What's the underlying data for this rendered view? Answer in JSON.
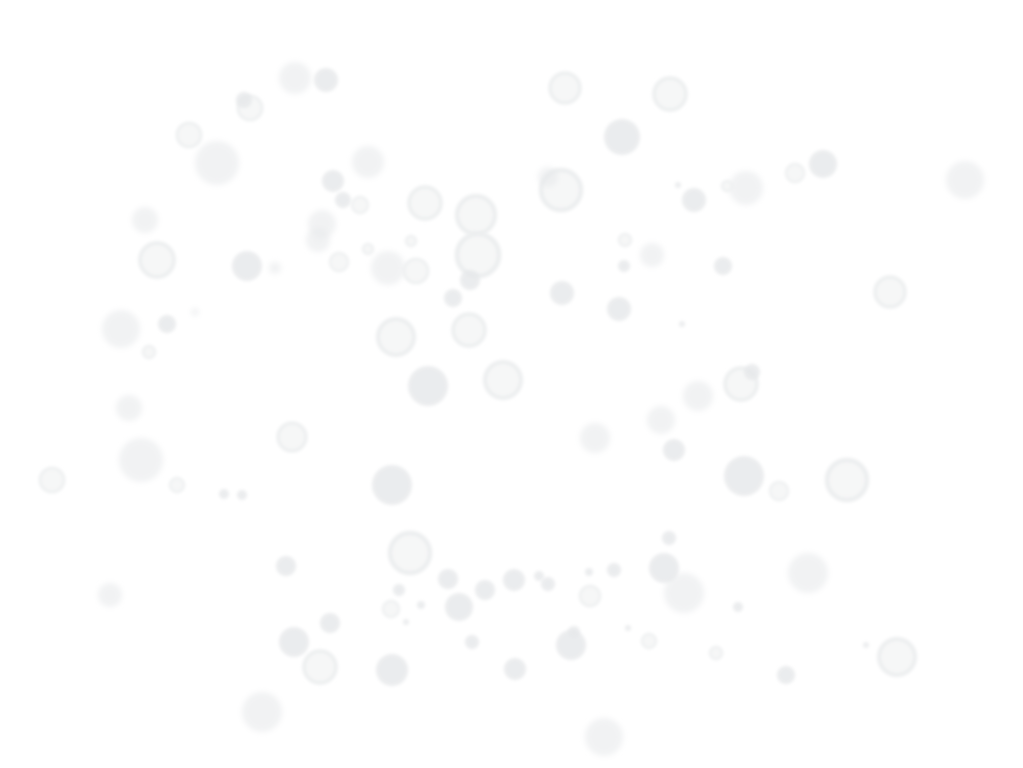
{
  "background": {
    "color": "#ffffff",
    "pattern": "bokeh-circles",
    "circle_color": "#e6e8ea",
    "ring_color": "#eceeef"
  }
}
